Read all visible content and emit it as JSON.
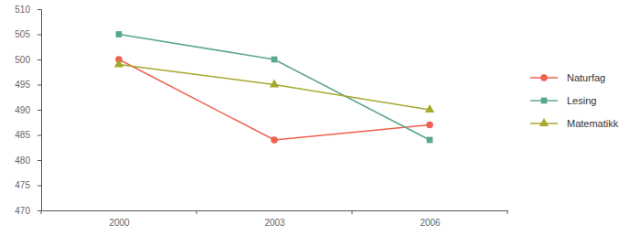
{
  "chart_data": {
    "type": "line",
    "categories": [
      "2000",
      "2003",
      "2006"
    ],
    "series": [
      {
        "name": "Naturfag",
        "color": "#f0604f",
        "marker": "circle",
        "values": [
          500,
          484,
          487
        ]
      },
      {
        "name": "Lesing",
        "color": "#5aa88a",
        "marker": "square",
        "values": [
          505,
          500,
          484
        ]
      },
      {
        "name": "Matematikk",
        "color": "#a4a92c",
        "marker": "triangle",
        "values": [
          499,
          495,
          490
        ]
      }
    ],
    "ylim": [
      470,
      510
    ],
    "yticks": [
      470,
      475,
      480,
      485,
      490,
      495,
      500,
      505,
      510
    ],
    "grid": false,
    "legend": "right"
  }
}
